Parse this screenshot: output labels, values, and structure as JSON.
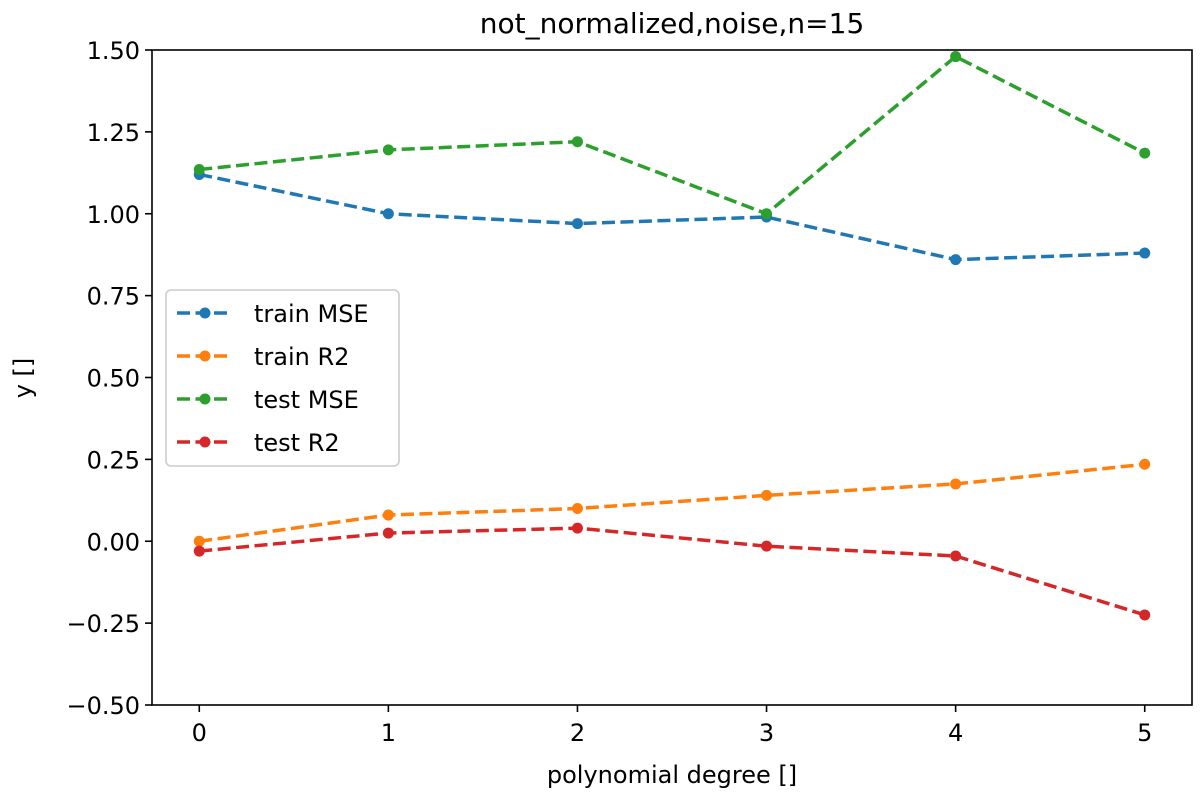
{
  "chart_data": {
    "type": "line",
    "title": "not_normalized,noise,n=15",
    "xlabel": "polynomial degree []",
    "ylabel": "y []",
    "x": [
      0,
      1,
      2,
      3,
      4,
      5
    ],
    "xlim": [
      -0.25,
      5.25
    ],
    "ylim": [
      -0.5,
      1.5
    ],
    "xticks": [
      0,
      1,
      2,
      3,
      4,
      5
    ],
    "xtick_labels": [
      "0",
      "1",
      "2",
      "3",
      "4",
      "5"
    ],
    "yticks": [
      -0.5,
      -0.25,
      0.0,
      0.25,
      0.5,
      0.75,
      1.0,
      1.25,
      1.5
    ],
    "ytick_labels": [
      "−0.50",
      "−0.25",
      "0.00",
      "0.25",
      "0.50",
      "0.75",
      "1.00",
      "1.25",
      "1.50"
    ],
    "grid": false,
    "legend_position": "center-left",
    "line_style": "dashed",
    "marker": "circle",
    "series": [
      {
        "name": "train MSE",
        "color": "#1f77b4",
        "values": [
          1.12,
          1.0,
          0.97,
          0.99,
          0.86,
          0.88
        ]
      },
      {
        "name": "train R2",
        "color": "#ff7f0e",
        "values": [
          0.0,
          0.08,
          0.1,
          0.14,
          0.175,
          0.235
        ]
      },
      {
        "name": "test MSE",
        "color": "#2ca02c",
        "values": [
          1.135,
          1.195,
          1.22,
          1.0,
          1.48,
          1.185
        ]
      },
      {
        "name": "test R2",
        "color": "#d62728",
        "values": [
          -0.03,
          0.025,
          0.04,
          -0.015,
          -0.045,
          -0.225
        ]
      }
    ]
  }
}
